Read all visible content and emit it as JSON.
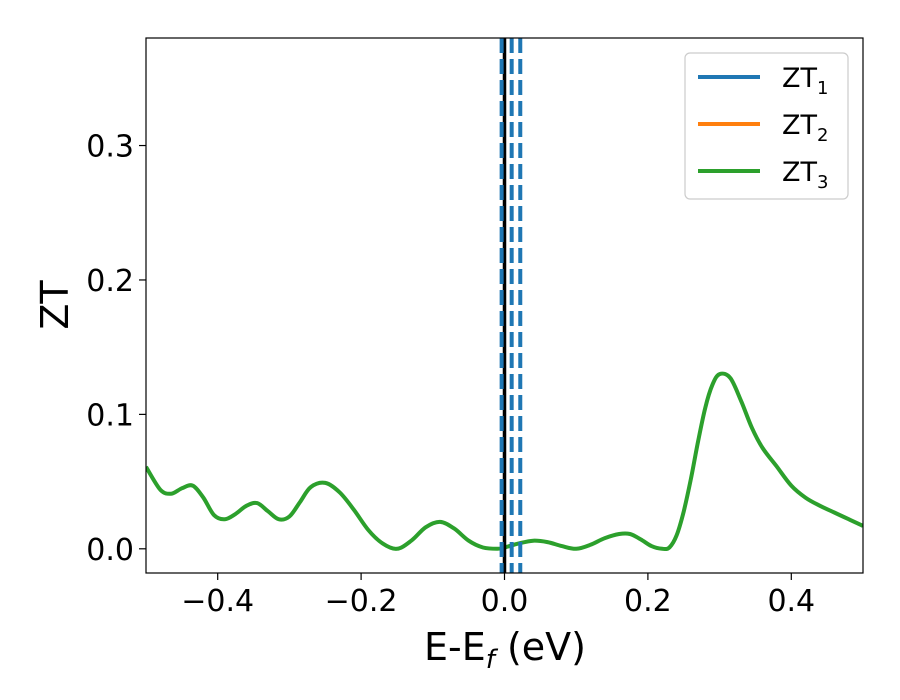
{
  "chart_data": {
    "type": "line",
    "xlabel": "E-E",
    "xlabel_sub": "f",
    "xlabel_unit": " (eV)",
    "ylabel": "ZT",
    "xlim": [
      -0.5,
      0.5
    ],
    "ylim": [
      -0.018,
      0.38
    ],
    "xticks": [
      -0.4,
      -0.2,
      0.0,
      0.2,
      0.4
    ],
    "xtick_labels": [
      "−0.4",
      "−0.2",
      "0.0",
      "0.2",
      "0.4"
    ],
    "yticks": [
      0.0,
      0.1,
      0.2,
      0.3
    ],
    "ytick_labels": [
      "0.0",
      "0.1",
      "0.2",
      "0.3"
    ],
    "grid": false,
    "legend_position": "top-right",
    "series": [
      {
        "name": "ZT",
        "name_sub": "1",
        "color": "#1f77b4",
        "x": [],
        "y": []
      },
      {
        "name": "ZT",
        "name_sub": "2",
        "color": "#ff7f0e",
        "x": [],
        "y": []
      },
      {
        "name": "ZT",
        "name_sub": "3",
        "color": "#2ca02c",
        "x": [
          -0.5,
          -0.48,
          -0.465,
          -0.45,
          -0.435,
          -0.42,
          -0.405,
          -0.39,
          -0.375,
          -0.36,
          -0.345,
          -0.33,
          -0.315,
          -0.3,
          -0.285,
          -0.27,
          -0.25,
          -0.23,
          -0.21,
          -0.19,
          -0.17,
          -0.15,
          -0.13,
          -0.11,
          -0.09,
          -0.07,
          -0.05,
          -0.03,
          -0.01,
          0.0,
          0.02,
          0.04,
          0.06,
          0.08,
          0.1,
          0.12,
          0.14,
          0.16,
          0.175,
          0.19,
          0.205,
          0.22,
          0.23,
          0.24,
          0.25,
          0.26,
          0.27,
          0.28,
          0.29,
          0.3,
          0.315,
          0.33,
          0.345,
          0.36,
          0.38,
          0.4,
          0.42,
          0.44,
          0.46,
          0.48,
          0.5
        ],
        "y": [
          0.061,
          0.044,
          0.041,
          0.045,
          0.047,
          0.038,
          0.025,
          0.022,
          0.026,
          0.032,
          0.034,
          0.028,
          0.022,
          0.024,
          0.035,
          0.046,
          0.049,
          0.042,
          0.029,
          0.014,
          0.004,
          0.0,
          0.006,
          0.016,
          0.02,
          0.015,
          0.006,
          0.001,
          0.0,
          0.001,
          0.004,
          0.006,
          0.005,
          0.002,
          0.0,
          0.003,
          0.008,
          0.011,
          0.011,
          0.007,
          0.002,
          0.0,
          0.001,
          0.01,
          0.028,
          0.052,
          0.08,
          0.105,
          0.122,
          0.13,
          0.127,
          0.11,
          0.09,
          0.075,
          0.061,
          0.047,
          0.038,
          0.032,
          0.027,
          0.022,
          0.017
        ]
      }
    ],
    "vlines": [
      {
        "x": 0.0,
        "color": "#000000",
        "style": "solid"
      },
      {
        "x": -0.004,
        "color": "#1f77b4",
        "style": "dashed"
      },
      {
        "x": 0.01,
        "color": "#1f77b4",
        "style": "dashed"
      },
      {
        "x": 0.022,
        "color": "#1f77b4",
        "style": "dashed"
      }
    ]
  }
}
